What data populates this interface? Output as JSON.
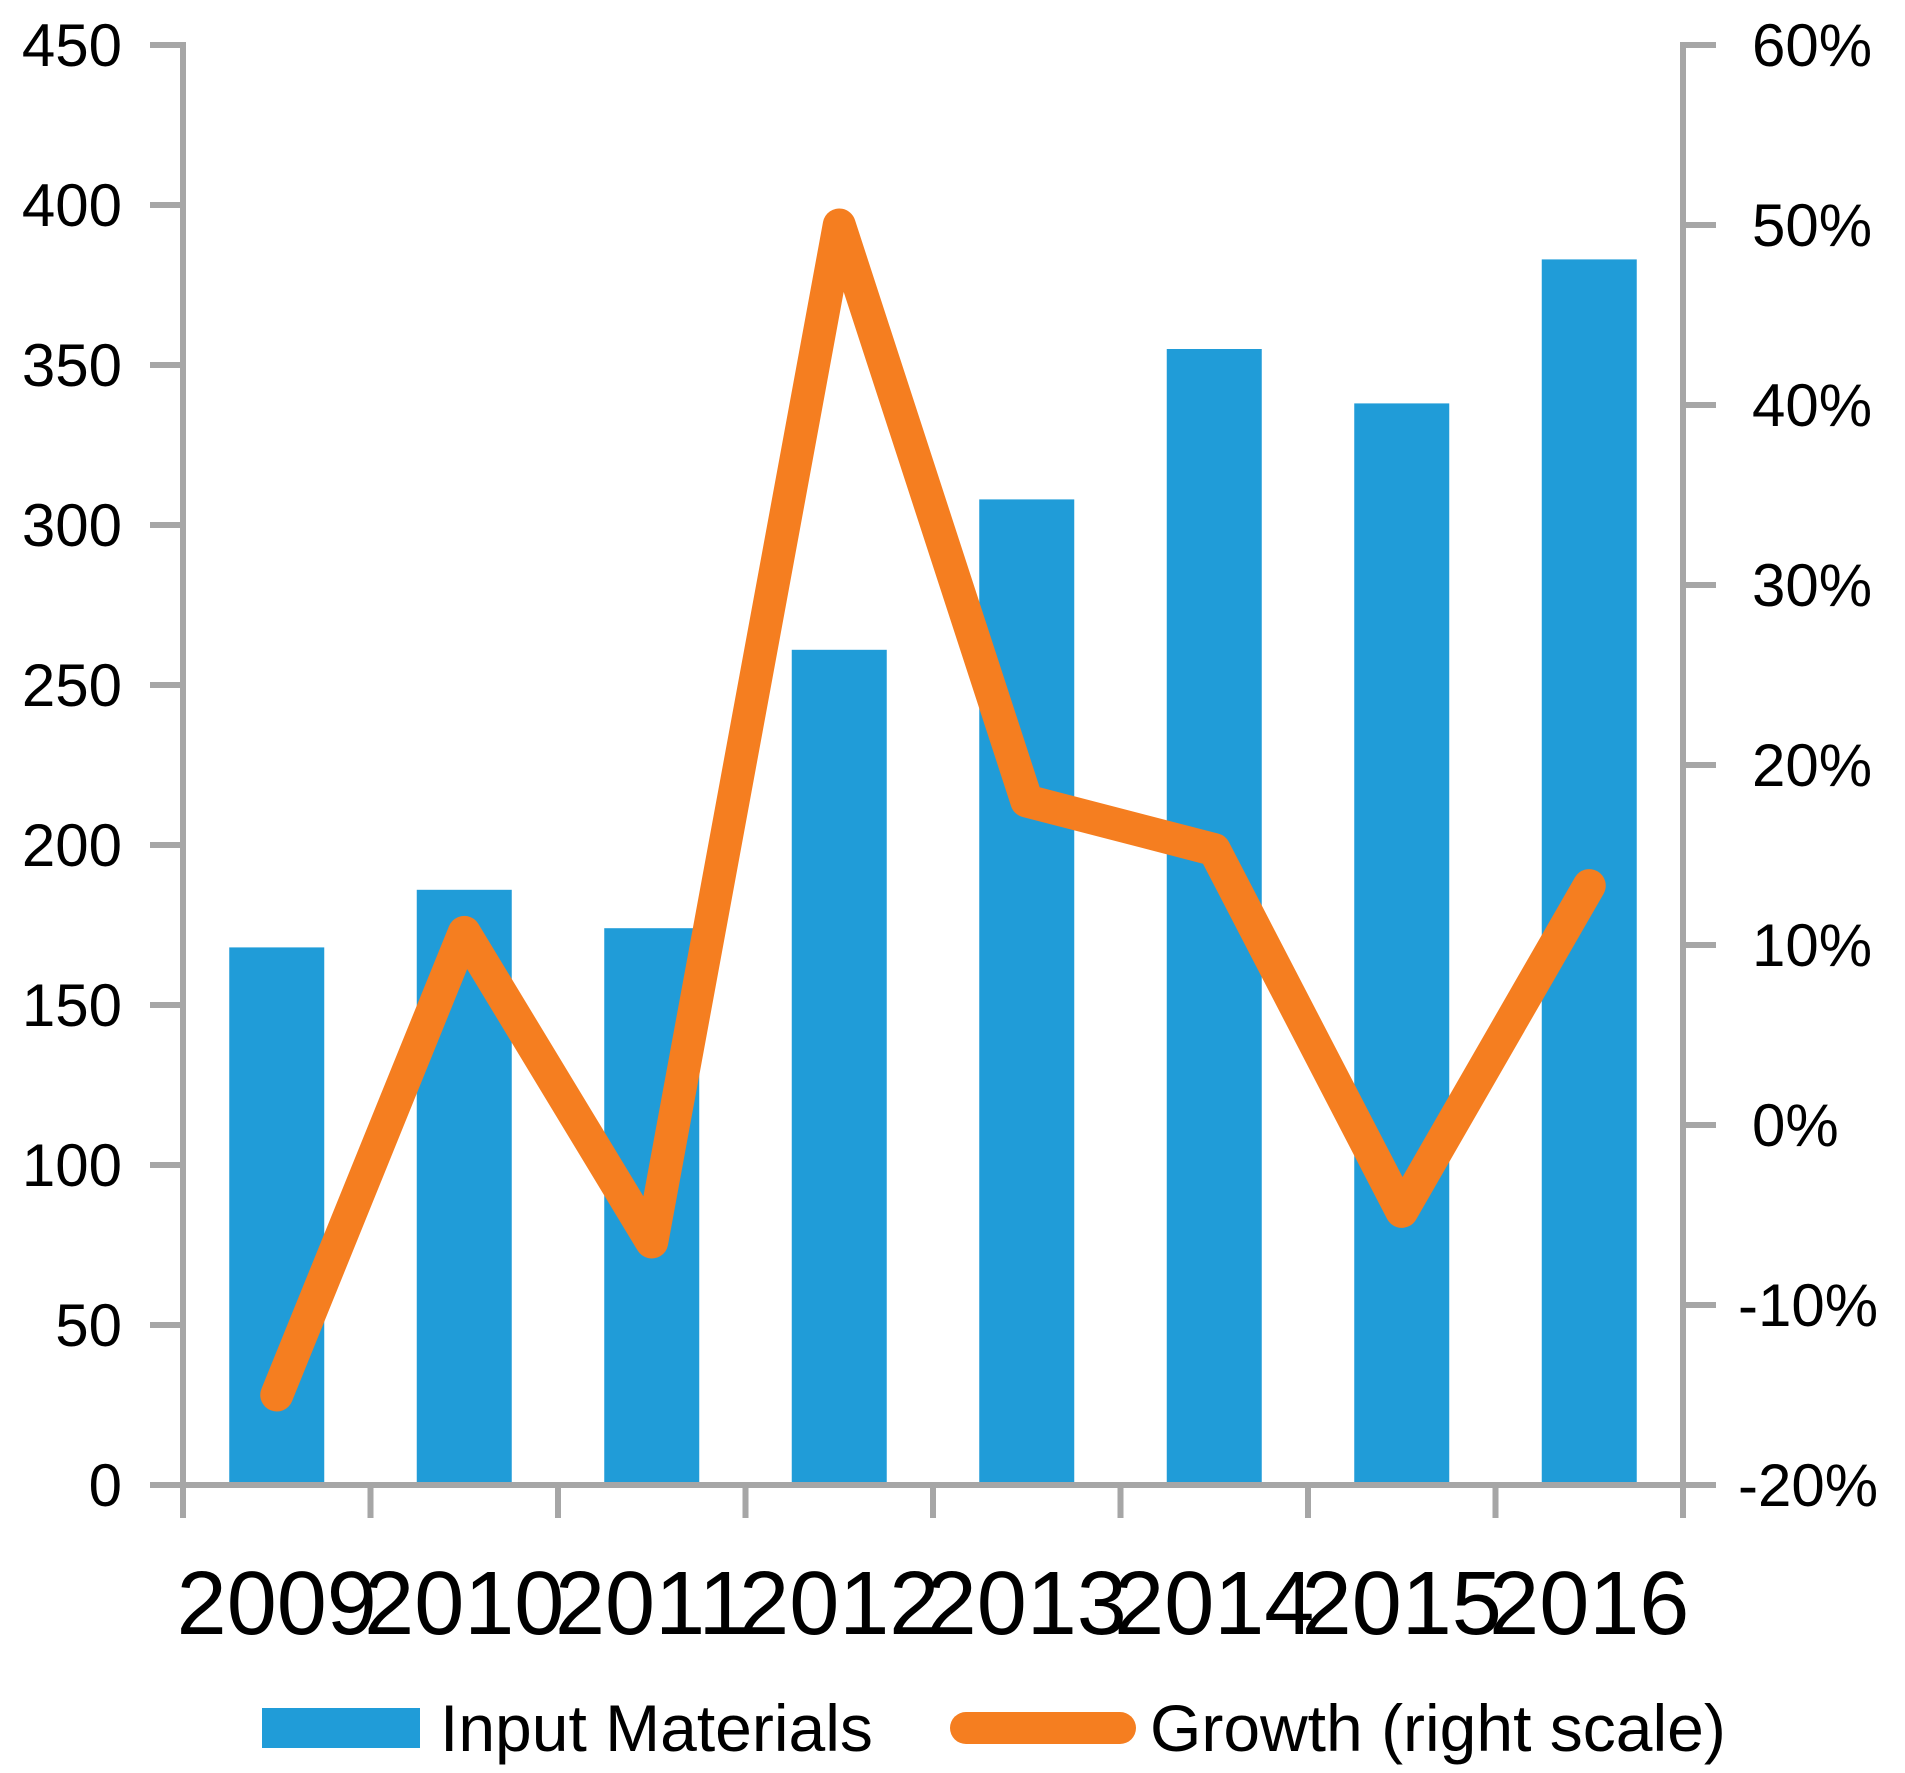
{
  "chart_data": {
    "type": "combo",
    "title": "",
    "categories": [
      "2009",
      "2010",
      "2011",
      "2012",
      "2013",
      "2014",
      "2015",
      "2016"
    ],
    "series": [
      {
        "name": "Input Materials",
        "type": "bar",
        "axis": "left",
        "color": "#209CD8",
        "values": [
          168,
          186,
          174,
          261,
          308,
          355,
          338,
          383
        ]
      },
      {
        "name": "Growth (right scale)",
        "type": "line",
        "axis": "right",
        "color": "#F57E20",
        "values": [
          -15,
          10.7,
          -6.5,
          50,
          18,
          15.3,
          -4.8,
          13.3
        ]
      }
    ],
    "left_axis": {
      "min": 0,
      "max": 450,
      "tick_labels": [
        "450",
        "400",
        "350",
        "300",
        "250",
        "200",
        "150",
        "100",
        "50",
        "0"
      ]
    },
    "right_axis": {
      "min": -20,
      "max": 60,
      "tick_labels": [
        "60%",
        "50%",
        "40%",
        "30%",
        "20%",
        "10%",
        "0%",
        "-10%",
        "-20%"
      ]
    },
    "grid": false,
    "legend": {
      "position": "bottom",
      "entries": [
        "Input Materials",
        "Growth (right scale)"
      ]
    }
  },
  "colors": {
    "bar": "#209CD8",
    "line": "#F57E20",
    "axis": "#A6A6A6",
    "text": "#000000",
    "background": "#FFFFFF"
  }
}
